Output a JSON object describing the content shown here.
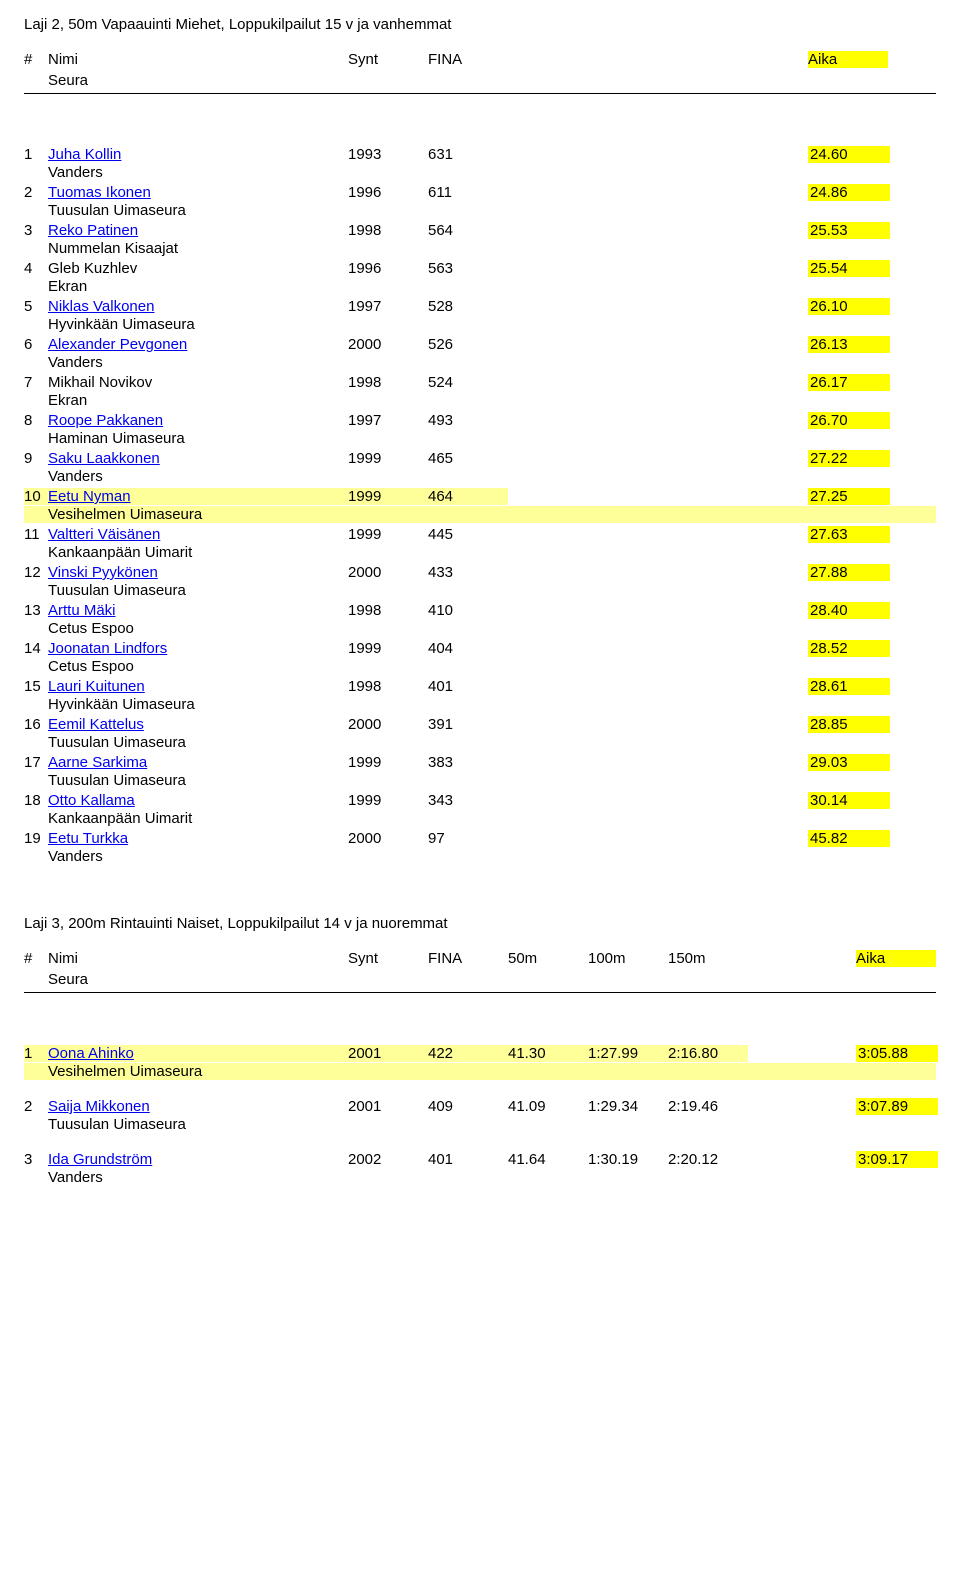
{
  "event1": {
    "title": "Laji 2, 50m Vapaauinti Miehet, Loppukilpailut 15 v ja vanhemmat",
    "headers": {
      "rank": "#",
      "name": "Nimi",
      "club": "Seura",
      "synt": "Synt",
      "fina": "FINA",
      "aika": "Aika"
    },
    "rows": [
      {
        "rank": "1",
        "name": "Juha Kollin",
        "link": true,
        "club": "Vanders",
        "synt": "1993",
        "fina": "631",
        "aika": "24.60",
        "hl": false
      },
      {
        "rank": "2",
        "name": "Tuomas Ikonen",
        "link": true,
        "club": "Tuusulan Uimaseura",
        "synt": "1996",
        "fina": "611",
        "aika": "24.86",
        "hl": false
      },
      {
        "rank": "3",
        "name": "Reko Patinen",
        "link": true,
        "club": "Nummelan Kisaajat",
        "synt": "1998",
        "fina": "564",
        "aika": "25.53",
        "hl": false
      },
      {
        "rank": "4",
        "name": "Gleb Kuzhlev",
        "link": false,
        "club": "Ekran",
        "synt": "1996",
        "fina": "563",
        "aika": "25.54",
        "hl": false
      },
      {
        "rank": "5",
        "name": "Niklas Valkonen",
        "link": true,
        "club": "Hyvinkään Uimaseura",
        "synt": "1997",
        "fina": "528",
        "aika": "26.10",
        "hl": false
      },
      {
        "rank": "6",
        "name": "Alexander Pevgonen",
        "link": true,
        "club": "Vanders",
        "synt": "2000",
        "fina": "526",
        "aika": "26.13",
        "hl": false
      },
      {
        "rank": "7",
        "name": "Mikhail Novikov",
        "link": false,
        "club": "Ekran",
        "synt": "1998",
        "fina": "524",
        "aika": "26.17",
        "hl": false
      },
      {
        "rank": "8",
        "name": "Roope Pakkanen",
        "link": true,
        "club": "Haminan Uimaseura",
        "synt": "1997",
        "fina": "493",
        "aika": "26.70",
        "hl": false
      },
      {
        "rank": "9",
        "name": "Saku Laakkonen",
        "link": true,
        "club": "Vanders",
        "synt": "1999",
        "fina": "465",
        "aika": "27.22",
        "hl": false
      },
      {
        "rank": "10",
        "name": "Eetu Nyman",
        "link": true,
        "club": "Vesihelmen Uimaseura",
        "synt": "1999",
        "fina": "464",
        "aika": "27.25",
        "hl": true
      },
      {
        "rank": "11",
        "name": "Valtteri Väisänen",
        "link": true,
        "club": "Kankaanpään Uimarit",
        "synt": "1999",
        "fina": "445",
        "aika": "27.63",
        "hl": false
      },
      {
        "rank": "12",
        "name": "Vinski Pyykönen",
        "link": true,
        "club": "Tuusulan Uimaseura",
        "synt": "2000",
        "fina": "433",
        "aika": "27.88",
        "hl": false
      },
      {
        "rank": "13",
        "name": "Arttu Mäki",
        "link": true,
        "club": "Cetus Espoo",
        "synt": "1998",
        "fina": "410",
        "aika": "28.40",
        "hl": false
      },
      {
        "rank": "14",
        "name": "Joonatan Lindfors",
        "link": true,
        "club": "Cetus Espoo",
        "synt": "1999",
        "fina": "404",
        "aika": "28.52",
        "hl": false
      },
      {
        "rank": "15",
        "name": "Lauri Kuitunen",
        "link": true,
        "club": "Hyvinkään Uimaseura",
        "synt": "1998",
        "fina": "401",
        "aika": "28.61",
        "hl": false
      },
      {
        "rank": "16",
        "name": "Eemil Kattelus",
        "link": true,
        "club": "Tuusulan Uimaseura",
        "synt": "2000",
        "fina": "391",
        "aika": "28.85",
        "hl": false
      },
      {
        "rank": "17",
        "name": "Aarne Sarkima",
        "link": true,
        "club": "Tuusulan Uimaseura",
        "synt": "1999",
        "fina": "383",
        "aika": "29.03",
        "hl": false
      },
      {
        "rank": "18",
        "name": "Otto Kallama",
        "link": true,
        "club": "Kankaanpään Uimarit",
        "synt": "1999",
        "fina": "343",
        "aika": "30.14",
        "hl": false
      },
      {
        "rank": "19",
        "name": "Eetu Turkka",
        "link": true,
        "club": "Vanders",
        "synt": "2000",
        "fina": "97",
        "aika": "45.82",
        "hl": false
      }
    ]
  },
  "event2": {
    "title": "Laji 3, 200m Rintauinti Naiset, Loppukilpailut 14 v ja nuoremmat",
    "headers": {
      "rank": "#",
      "name": "Nimi",
      "club": "Seura",
      "synt": "Synt",
      "fina": "FINA",
      "s50": "50m",
      "s100": "100m",
      "s150": "150m",
      "aika": "Aika"
    },
    "rows": [
      {
        "rank": "1",
        "name": "Oona Ahinko",
        "link": true,
        "club": "Vesihelmen Uimaseura",
        "synt": "2001",
        "fina": "422",
        "s50": "41.30",
        "s100": "1:27.99",
        "s150": "2:16.80",
        "aika": "3:05.88",
        "hl": true
      },
      {
        "rank": "2",
        "name": "Saija Mikkonen",
        "link": true,
        "club": "Tuusulan Uimaseura",
        "synt": "2001",
        "fina": "409",
        "s50": "41.09",
        "s100": "1:29.34",
        "s150": "2:19.46",
        "aika": "3:07.89",
        "hl": false
      },
      {
        "rank": "3",
        "name": "Ida Grundström",
        "link": true,
        "club": "Vanders",
        "synt": "2002",
        "fina": "401",
        "s50": "41.64",
        "s100": "1:30.19",
        "s150": "2:20.12",
        "aika": "3:09.17",
        "hl": false
      }
    ]
  }
}
